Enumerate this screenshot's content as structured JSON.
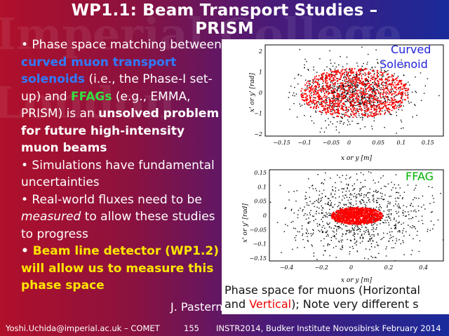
{
  "slide": {
    "title_line1": "WP1.1: Beam Transport Studies –",
    "title_line2": "PRISM",
    "watermark": [
      "Imperial College",
      "London"
    ],
    "bullets": [
      {
        "bullet": "•",
        "t1": " Phase space matching between ",
        "b1": "curved muon transport solenoids",
        "t2": " (i.e., the Phase-I set-up) and ",
        "b2": "FFAGs",
        "t3": " (e.g., EMMA, PRISM) is an ",
        "b3": "unsolved problem for future high-intensity muon beams"
      },
      {
        "bullet": "•",
        "text": " Simulations have fundamental uncertainties"
      },
      {
        "bullet": "•",
        "t1": " Real-world fluxes need to be ",
        "em": "measured",
        "t2": " to allow these studies to progress"
      },
      {
        "bullet": "•",
        "text": " Beam line detector (WP1.2) will allow us to measure this phase space"
      }
    ],
    "author": "J. Pasternak",
    "caption": {
      "p1": "Phase space for muons (Horizontal",
      "p2": "and ",
      "vertical": "Vertical",
      "p3": "); Note very different s"
    }
  },
  "plot_top": {
    "label": "Curved Solenoid",
    "label_line1": "Curved",
    "label_line2": "Solenoid",
    "xlabel": "x or y [m]",
    "ylabel": "x' or y' [rad]",
    "xticks": [
      "−0.15",
      "−0.1",
      "−0.05",
      "0",
      "0.05",
      "0.1",
      "0.15"
    ],
    "yticks": [
      "2",
      "1",
      "0",
      "−1",
      "−2"
    ]
  },
  "plot_bottom": {
    "label": "FFAG",
    "xlabel": "x or y [m]",
    "ylabel": "x' or y' [rad]",
    "xticks": [
      "−0.4",
      "−0.2",
      "0",
      "0.2",
      "0.4"
    ],
    "yticks": [
      "0.15",
      "0.1",
      "0.05",
      "0",
      "−0.05",
      "−0.1",
      "−0.15"
    ]
  },
  "chart_data": [
    {
      "type": "scatter",
      "xlabel": "x or y [m]",
      "ylabel": "x' or y' [rad]",
      "xlim": [
        -0.18,
        0.18
      ],
      "ylim": [
        -2.1,
        2.3
      ],
      "series": [
        {
          "name": "Horizontal",
          "color": "#000000",
          "x_spread": 0.12,
          "y_spread": 1.6
        },
        {
          "name": "Vertical",
          "color": "#ff0000",
          "x_spread": 0.11,
          "y_spread": 1.2
        }
      ]
    },
    {
      "type": "scatter",
      "xlabel": "x or y [m]",
      "ylabel": "x' or y' [rad]",
      "xlim": [
        -0.5,
        0.5
      ],
      "ylim": [
        -0.16,
        0.16
      ],
      "series": [
        {
          "name": "Horizontal",
          "color": "#000000",
          "x_spread": 0.42,
          "y_spread": 0.15
        },
        {
          "name": "Vertical",
          "color": "#ff0000",
          "x_spread": 0.15,
          "y_spread": 0.03
        }
      ]
    }
  ],
  "footer": {
    "email": "Yoshi.Uchida@imperial.ac.uk – COMET",
    "page": "155",
    "event": "INSTR2014, Budker Institute Novosibirsk February 2014"
  },
  "colors": {
    "blue_term": "#2f7bff",
    "green_term": "#34e040",
    "yellow_term": "#ffe600",
    "plot_label": "#2222dd",
    "ffag_label": "#00b000"
  }
}
